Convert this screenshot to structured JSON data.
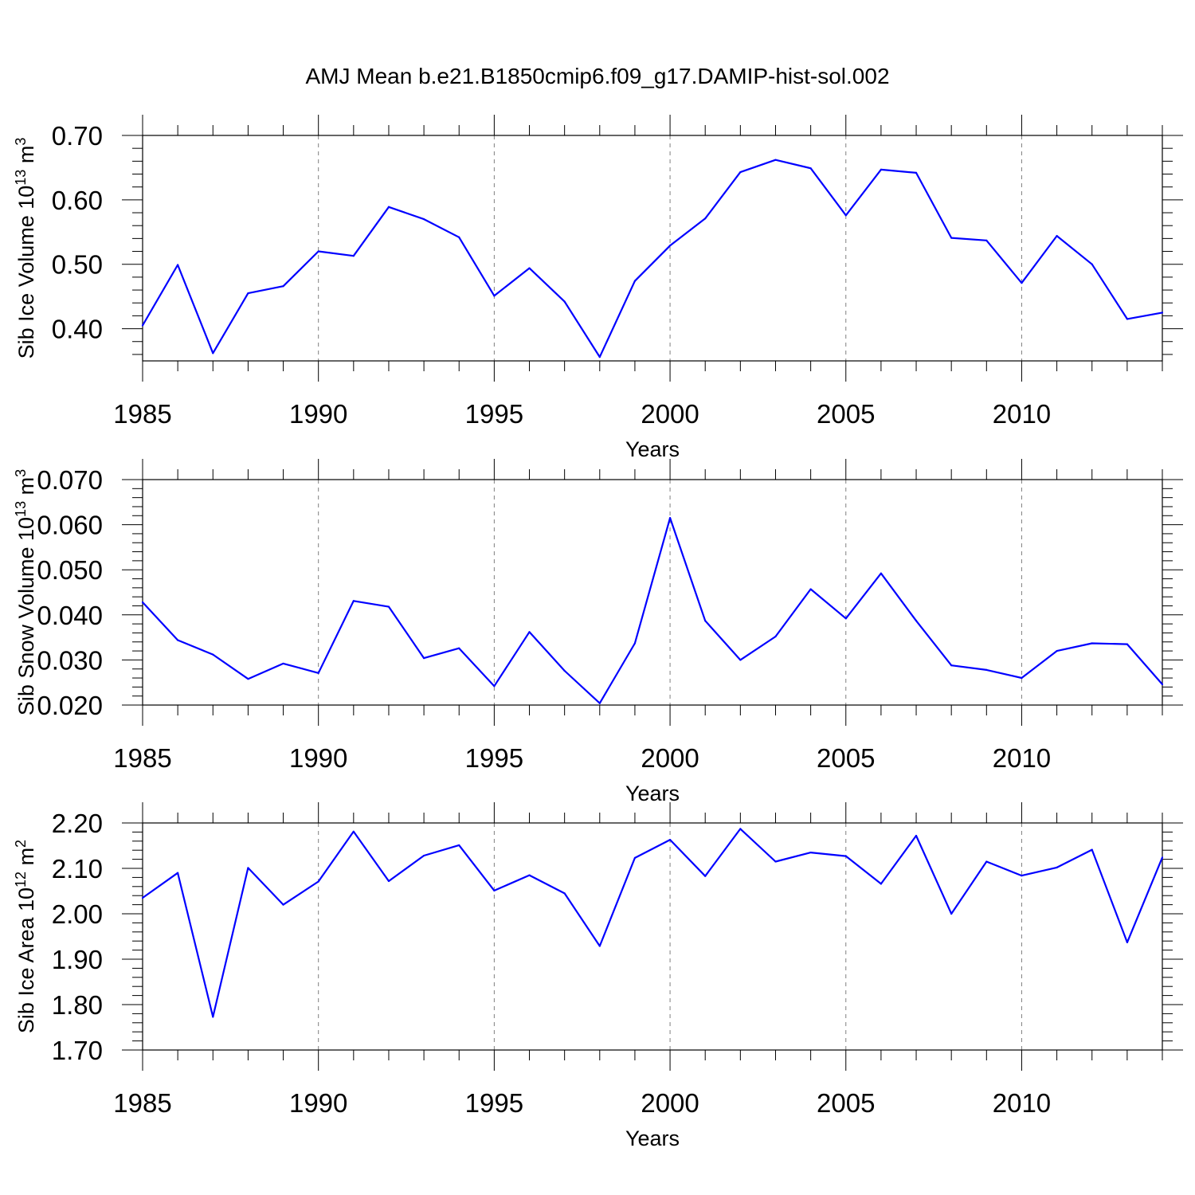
{
  "title": "AMJ Mean b.e21.B1850cmip6.f09_g17.DAMIP-hist-sol.002",
  "colors": {
    "line": "#0000ff",
    "axis": "#000000",
    "grid": "#7f7f7f"
  },
  "chart_data": [
    {
      "type": "line",
      "ylabel_main": "Sib Ice Volume 10",
      "ylabel_exp": "13",
      "ylabel_unit": " m",
      "ylabel_unit_exp": "3",
      "xlabel": "Years",
      "xlim": [
        1985,
        2014
      ],
      "ylim": [
        0.35,
        0.7
      ],
      "yticks": [
        0.4,
        0.5,
        0.6,
        0.7
      ],
      "ytick_labels": [
        "0.40",
        "0.50",
        "0.60",
        "0.70"
      ],
      "xticks": [
        1985,
        1990,
        1995,
        2000,
        2005,
        2010
      ],
      "xtick_labels": [
        "1985",
        "1990",
        "1995",
        "2000",
        "2005",
        "2010"
      ],
      "gridlines_x": [
        1990,
        1995,
        2000,
        2005,
        2010
      ],
      "series": [
        {
          "name": "Sib Ice Volume",
          "x": [
            1985,
            1986,
            1987,
            1988,
            1989,
            1990,
            1991,
            1992,
            1993,
            1994,
            1995,
            1996,
            1997,
            1998,
            1999,
            2000,
            2001,
            2002,
            2003,
            2004,
            2005,
            2006,
            2007,
            2008,
            2009,
            2010,
            2011,
            2012,
            2013,
            2014
          ],
          "y": [
            0.405,
            0.499,
            0.362,
            0.455,
            0.466,
            0.52,
            0.513,
            0.589,
            0.57,
            0.542,
            0.451,
            0.494,
            0.442,
            0.356,
            0.474,
            0.529,
            0.571,
            0.643,
            0.662,
            0.649,
            0.576,
            0.647,
            0.642,
            0.541,
            0.537,
            0.471,
            0.544,
            0.5,
            0.415,
            0.425
          ]
        }
      ]
    },
    {
      "type": "line",
      "ylabel_main": "Sib Snow Volume 10",
      "ylabel_exp": "13",
      "ylabel_unit": " m",
      "ylabel_unit_exp": "3",
      "xlabel": "Years",
      "xlim": [
        1985,
        2014
      ],
      "ylim": [
        0.02,
        0.07
      ],
      "yticks": [
        0.02,
        0.03,
        0.04,
        0.05,
        0.06,
        0.07
      ],
      "ytick_labels": [
        "0.020",
        "0.030",
        "0.040",
        "0.050",
        "0.060",
        "0.070"
      ],
      "xticks": [
        1985,
        1990,
        1995,
        2000,
        2005,
        2010
      ],
      "xtick_labels": [
        "1985",
        "1990",
        "1995",
        "2000",
        "2005",
        "2010"
      ],
      "gridlines_x": [
        1990,
        1995,
        2000,
        2005,
        2010
      ],
      "series": [
        {
          "name": "Sib Snow Volume",
          "x": [
            1985,
            1986,
            1987,
            1988,
            1989,
            1990,
            1991,
            1992,
            1993,
            1994,
            1995,
            1996,
            1997,
            1998,
            1999,
            2000,
            2001,
            2002,
            2003,
            2004,
            2005,
            2006,
            2007,
            2008,
            2009,
            2010,
            2011,
            2012,
            2013,
            2014
          ],
          "y": [
            0.0428,
            0.0344,
            0.0312,
            0.0258,
            0.0292,
            0.0271,
            0.0431,
            0.0418,
            0.0304,
            0.0326,
            0.0242,
            0.0362,
            0.0276,
            0.0204,
            0.0337,
            0.0615,
            0.0387,
            0.03,
            0.0352,
            0.0457,
            0.0392,
            0.0492,
            0.0387,
            0.0288,
            0.0278,
            0.026,
            0.032,
            0.0337,
            0.0335,
            0.0246
          ]
        }
      ]
    },
    {
      "type": "line",
      "ylabel_main": "Sib Ice Area 10",
      "ylabel_exp": "12",
      "ylabel_unit": " m",
      "ylabel_unit_exp": "2",
      "xlabel": "Years",
      "xlim": [
        1985,
        2014
      ],
      "ylim": [
        1.7,
        2.2
      ],
      "yticks": [
        1.7,
        1.8,
        1.9,
        2.0,
        2.1,
        2.2
      ],
      "ytick_labels": [
        "1.70",
        "1.80",
        "1.90",
        "2.00",
        "2.10",
        "2.20"
      ],
      "xticks": [
        1985,
        1990,
        1995,
        2000,
        2005,
        2010
      ],
      "xtick_labels": [
        "1985",
        "1990",
        "1995",
        "2000",
        "2005",
        "2010"
      ],
      "gridlines_x": [
        1990,
        1995,
        2000,
        2005,
        2010
      ],
      "series": [
        {
          "name": "Sib Ice Area",
          "x": [
            1985,
            1986,
            1987,
            1988,
            1989,
            1990,
            1991,
            1992,
            1993,
            1994,
            1995,
            1996,
            1997,
            1998,
            1999,
            2000,
            2001,
            2002,
            2003,
            2004,
            2005,
            2006,
            2007,
            2008,
            2009,
            2010,
            2011,
            2012,
            2013,
            2014
          ],
          "y": [
            2.035,
            2.09,
            1.773,
            2.101,
            2.02,
            2.071,
            2.181,
            2.072,
            2.128,
            2.151,
            2.051,
            2.085,
            2.045,
            1.929,
            2.123,
            2.163,
            2.083,
            2.187,
            2.115,
            2.135,
            2.127,
            2.066,
            2.172,
            2.0,
            2.115,
            2.084,
            2.102,
            2.141,
            1.937,
            2.124
          ]
        }
      ]
    }
  ]
}
